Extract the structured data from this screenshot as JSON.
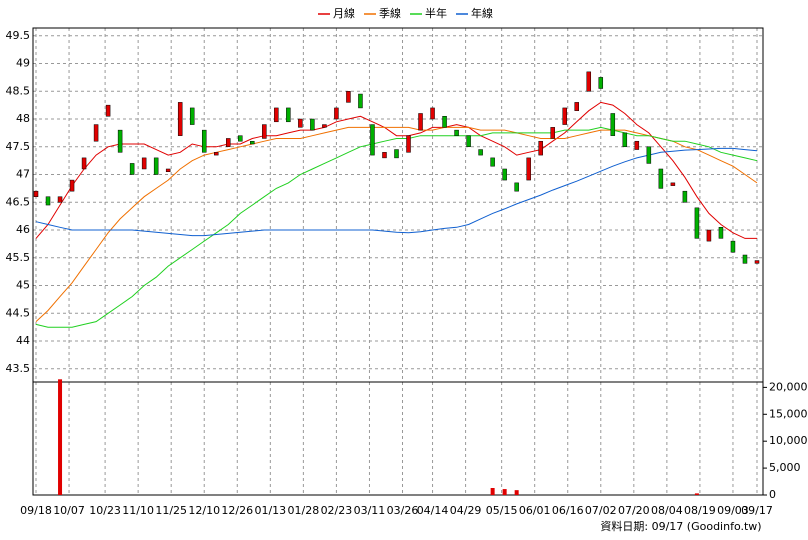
{
  "chart_data": {
    "type": "candlestick",
    "x": [
      0,
      1,
      2,
      3,
      4,
      5,
      6,
      7,
      8,
      9,
      10,
      11,
      12,
      13,
      14,
      15,
      16,
      17,
      18,
      19,
      20,
      21,
      22,
      23,
      24,
      25,
      26,
      27,
      28,
      29,
      30,
      31,
      32,
      33,
      34,
      35,
      36,
      37,
      38,
      39,
      40,
      41,
      42,
      43,
      44,
      45,
      46,
      47,
      48,
      49,
      50,
      51,
      52,
      53,
      54,
      55,
      56,
      57,
      58,
      59,
      60
    ],
    "xlim": [
      -0.25,
      60.5
    ],
    "xticks": [
      {
        "value": 0,
        "label": "09/18"
      },
      {
        "value": 2.75,
        "label": "10/07"
      },
      {
        "value": 5.75,
        "label": "10/23"
      },
      {
        "value": 8.5,
        "label": "11/10"
      },
      {
        "value": 11.25,
        "label": "11/25"
      },
      {
        "value": 14,
        "label": "12/10"
      },
      {
        "value": 16.75,
        "label": "12/26"
      },
      {
        "value": 19.5,
        "label": "01/13"
      },
      {
        "value": 22.25,
        "label": "01/28"
      },
      {
        "value": 25,
        "label": "02/23"
      },
      {
        "value": 27.75,
        "label": "03/11"
      },
      {
        "value": 30.5,
        "label": "03/26"
      },
      {
        "value": 33,
        "label": "04/14"
      },
      {
        "value": 35.75,
        "label": "04/29"
      },
      {
        "value": 38.75,
        "label": "05/15"
      },
      {
        "value": 41.5,
        "label": "06/01"
      },
      {
        "value": 44.25,
        "label": "06/16"
      },
      {
        "value": 47,
        "label": "07/02"
      },
      {
        "value": 49.75,
        "label": "07/20"
      },
      {
        "value": 52.5,
        "label": "08/04"
      },
      {
        "value": 55.25,
        "label": "08/19"
      },
      {
        "value": 58,
        "label": "09/03"
      },
      {
        "value": 60,
        "label": "09/17"
      }
    ],
    "ylim": [
      43.28,
      49.64
    ],
    "yticks": [
      43.5,
      44,
      44.5,
      45,
      45.5,
      46,
      46.5,
      47,
      47.5,
      48,
      48.5,
      49,
      49.5
    ],
    "grid": true,
    "legend": "top",
    "up_color": "#e00000",
    "down_color": "#00b000",
    "open": [
      46.6,
      46.6,
      46.5,
      46.7,
      47.1,
      47.6,
      48.05,
      47.8,
      47.2,
      47.1,
      47.3,
      47.05,
      47.7,
      48.2,
      47.8,
      47.35,
      47.5,
      47.7,
      47.6,
      47.65,
      47.95,
      48.2,
      47.85,
      48.0,
      47.85,
      48.0,
      48.3,
      48.45,
      47.9,
      47.3,
      47.45,
      47.4,
      47.8,
      48.0,
      48.05,
      47.8,
      47.7,
      47.45,
      47.3,
      47.1,
      46.85,
      46.9,
      47.35,
      47.65,
      47.9,
      48.15,
      48.5,
      48.75,
      48.1,
      47.75,
      47.45,
      47.5,
      47.1,
      46.8,
      46.7,
      46.4,
      45.8,
      46.05,
      45.8,
      45.55,
      45.4
    ],
    "close": [
      46.7,
      46.45,
      46.6,
      46.9,
      47.3,
      47.9,
      48.25,
      47.4,
      47.0,
      47.3,
      47.0,
      47.1,
      48.3,
      47.9,
      47.4,
      47.4,
      47.65,
      47.6,
      47.55,
      47.9,
      48.2,
      47.95,
      48.0,
      47.8,
      47.9,
      48.2,
      48.5,
      48.2,
      47.35,
      47.4,
      47.3,
      47.7,
      48.1,
      48.2,
      47.85,
      47.7,
      47.5,
      47.35,
      47.15,
      46.9,
      46.7,
      47.3,
      47.6,
      47.85,
      48.2,
      48.3,
      48.85,
      48.55,
      47.7,
      47.5,
      47.6,
      47.2,
      46.75,
      46.85,
      46.5,
      45.85,
      46.0,
      45.85,
      45.6,
      45.4,
      45.45
    ],
    "series": [
      {
        "name": "月線",
        "color": "#e00000",
        "values": [
          45.85,
          46.1,
          46.45,
          46.8,
          47.1,
          47.35,
          47.5,
          47.55,
          47.55,
          47.55,
          47.45,
          47.35,
          47.4,
          47.55,
          47.5,
          47.5,
          47.55,
          47.55,
          47.65,
          47.7,
          47.7,
          47.75,
          47.8,
          47.8,
          47.85,
          47.95,
          48.0,
          48.05,
          47.95,
          47.85,
          47.7,
          47.7,
          47.75,
          47.85,
          47.85,
          47.9,
          47.85,
          47.7,
          47.6,
          47.5,
          47.35,
          47.4,
          47.45,
          47.6,
          47.75,
          47.95,
          48.15,
          48.3,
          48.25,
          48.1,
          47.9,
          47.75,
          47.5,
          47.25,
          46.95,
          46.6,
          46.3,
          46.1,
          45.95,
          45.85,
          45.85
        ]
      },
      {
        "name": "季線",
        "color": "#f07000",
        "values": [
          44.35,
          44.55,
          44.8,
          45.05,
          45.35,
          45.65,
          45.95,
          46.2,
          46.4,
          46.6,
          46.75,
          46.9,
          47.1,
          47.25,
          47.35,
          47.4,
          47.45,
          47.5,
          47.55,
          47.6,
          47.65,
          47.65,
          47.65,
          47.7,
          47.75,
          47.8,
          47.85,
          47.85,
          47.85,
          47.85,
          47.85,
          47.85,
          47.8,
          47.8,
          47.85,
          47.85,
          47.85,
          47.8,
          47.8,
          47.8,
          47.75,
          47.7,
          47.65,
          47.65,
          47.65,
          47.7,
          47.75,
          47.8,
          47.8,
          47.8,
          47.75,
          47.7,
          47.65,
          47.6,
          47.5,
          47.45,
          47.35,
          47.25,
          47.15,
          47.0,
          46.85
        ]
      },
      {
        "name": "半年",
        "color": "#20d020",
        "values": [
          44.3,
          44.25,
          44.25,
          44.25,
          44.3,
          44.35,
          44.5,
          44.65,
          44.8,
          45.0,
          45.15,
          45.35,
          45.5,
          45.65,
          45.8,
          45.95,
          46.1,
          46.3,
          46.45,
          46.6,
          46.75,
          46.85,
          47.0,
          47.1,
          47.2,
          47.3,
          47.4,
          47.5,
          47.55,
          47.6,
          47.65,
          47.65,
          47.7,
          47.7,
          47.7,
          47.7,
          47.7,
          47.7,
          47.75,
          47.75,
          47.75,
          47.75,
          47.75,
          47.75,
          47.8,
          47.8,
          47.8,
          47.85,
          47.8,
          47.75,
          47.7,
          47.7,
          47.65,
          47.6,
          47.6,
          47.55,
          47.5,
          47.4,
          47.35,
          47.3,
          47.25
        ]
      },
      {
        "name": "年線",
        "color": "#1060d0",
        "values": [
          46.15,
          46.1,
          46.05,
          46.0,
          46.0,
          46.0,
          46.0,
          46.0,
          46.0,
          45.98,
          45.96,
          45.94,
          45.92,
          45.9,
          45.9,
          45.92,
          45.94,
          45.96,
          45.98,
          46.0,
          46.0,
          46.0,
          46.0,
          46.0,
          46.0,
          46.0,
          46.0,
          46.0,
          46.0,
          45.98,
          45.96,
          45.95,
          45.97,
          46.0,
          46.03,
          46.05,
          46.1,
          46.2,
          46.3,
          46.38,
          46.47,
          46.55,
          46.63,
          46.72,
          46.8,
          46.88,
          46.97,
          47.06,
          47.15,
          47.23,
          47.3,
          47.35,
          47.4,
          47.42,
          47.44,
          47.45,
          47.46,
          47.47,
          47.47,
          47.45,
          47.43
        ]
      }
    ],
    "volume": {
      "color": "#e00000",
      "ylim": [
        0,
        21000
      ],
      "yticks": [
        0,
        {
          "value": 5000,
          "label": "5,000"
        },
        {
          "value": 10000,
          "label": "10,000"
        },
        {
          "value": 15000,
          "label": "15,000"
        },
        {
          "value": 20000,
          "label": "20,000"
        }
      ],
      "values": [
        0,
        0,
        21500,
        0,
        0,
        0,
        0,
        0,
        0,
        0,
        0,
        0,
        0,
        0,
        0,
        0,
        0,
        0,
        0,
        0,
        0,
        0,
        0,
        0,
        0,
        0,
        0,
        0,
        0,
        0,
        0,
        0,
        0,
        0,
        0,
        0,
        0,
        0,
        1300,
        1100,
        900,
        0,
        0,
        0,
        0,
        0,
        0,
        0,
        0,
        0,
        0,
        0,
        0,
        0,
        0,
        300,
        0,
        0,
        0,
        0,
        0
      ]
    },
    "footnote": "資料日期: 09/17 (Goodinfo.tw)"
  }
}
